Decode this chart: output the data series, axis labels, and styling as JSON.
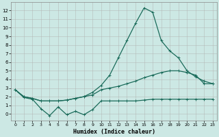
{
  "xlabel": "Humidex (Indice chaleur)",
  "bg_color": "#cce8e4",
  "grid_color": "#b0b0b0",
  "line_color": "#1a6b5a",
  "xlim": [
    -0.5,
    23.5
  ],
  "ylim": [
    -0.8,
    13
  ],
  "yticks": [
    0,
    1,
    2,
    3,
    4,
    5,
    6,
    7,
    8,
    9,
    10,
    11,
    12
  ],
  "xticks": [
    0,
    1,
    2,
    3,
    4,
    5,
    6,
    7,
    8,
    9,
    10,
    11,
    12,
    13,
    14,
    15,
    16,
    17,
    18,
    19,
    20,
    21,
    22,
    23
  ],
  "s1_x": [
    0,
    1,
    2,
    3,
    4,
    5,
    6,
    7,
    8,
    9,
    10,
    11,
    12,
    13,
    14,
    15,
    16,
    17,
    18,
    19,
    20,
    21,
    22,
    23
  ],
  "s1_y": [
    2.8,
    1.9,
    1.7,
    0.6,
    -0.2,
    0.8,
    -0.1,
    0.3,
    -0.1,
    0.5,
    1.5,
    1.5,
    1.5,
    1.5,
    1.5,
    1.6,
    1.7,
    1.7,
    1.7,
    1.7,
    1.7,
    1.7,
    1.7,
    1.7
  ],
  "s2_x": [
    0,
    1,
    2,
    3,
    4,
    5,
    6,
    7,
    8,
    9,
    10,
    11,
    12,
    13,
    14,
    15,
    16,
    17,
    18,
    19,
    20,
    21,
    22,
    23
  ],
  "s2_y": [
    2.8,
    2.0,
    1.8,
    1.5,
    1.5,
    1.5,
    1.6,
    1.8,
    2.0,
    2.2,
    2.8,
    3.0,
    3.2,
    3.5,
    3.8,
    4.2,
    4.5,
    4.8,
    5.0,
    5.0,
    4.8,
    4.5,
    3.5,
    3.5
  ],
  "s3_x": [
    0,
    1,
    2,
    3,
    4,
    5,
    6,
    7,
    8,
    9,
    10,
    11,
    12,
    13,
    14,
    15,
    16,
    17,
    18,
    19,
    20,
    21,
    22,
    23
  ],
  "s3_y": [
    2.8,
    2.0,
    1.8,
    1.5,
    1.5,
    1.5,
    1.6,
    1.8,
    2.0,
    2.5,
    3.3,
    4.5,
    6.5,
    8.5,
    10.5,
    12.3,
    11.8,
    8.5,
    7.3,
    6.5,
    5.0,
    4.3,
    3.8,
    3.5
  ],
  "marker": "+",
  "markersize": 3,
  "linewidth": 0.9
}
